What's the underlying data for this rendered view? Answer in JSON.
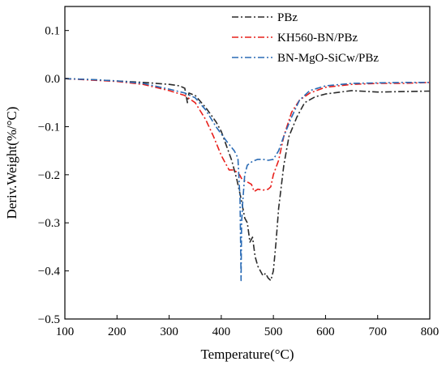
{
  "chart_data": {
    "type": "line",
    "title": "",
    "xlabel": "Temperature(°C)",
    "ylabel": "Deriv.Weight(%/°C)",
    "xlim": [
      100,
      800
    ],
    "ylim": [
      -0.5,
      0.15
    ],
    "xticks": [
      100,
      200,
      300,
      400,
      500,
      600,
      700,
      800
    ],
    "yticks": [
      -0.5,
      -0.4,
      -0.3,
      -0.2,
      -0.1,
      0.0,
      0.1
    ],
    "ytick_labels": [
      "−0.5",
      "−0.4",
      "−0.3",
      "−0.2",
      "−0.1",
      "0.0",
      "0.1"
    ],
    "grid": false,
    "legend_position": "top-right",
    "series": [
      {
        "name": "PBz",
        "color": "#2b2b2b",
        "dash": "dash-dot",
        "points": [
          [
            100,
            0.0
          ],
          [
            150,
            -0.002
          ],
          [
            200,
            -0.005
          ],
          [
            250,
            -0.008
          ],
          [
            300,
            -0.012
          ],
          [
            320,
            -0.015
          ],
          [
            330,
            -0.02
          ],
          [
            335,
            -0.05
          ],
          [
            338,
            -0.03
          ],
          [
            350,
            -0.035
          ],
          [
            370,
            -0.06
          ],
          [
            390,
            -0.09
          ],
          [
            400,
            -0.11
          ],
          [
            410,
            -0.14
          ],
          [
            420,
            -0.17
          ],
          [
            430,
            -0.21
          ],
          [
            438,
            -0.25
          ],
          [
            445,
            -0.29
          ],
          [
            450,
            -0.3
          ],
          [
            455,
            -0.34
          ],
          [
            460,
            -0.33
          ],
          [
            465,
            -0.37
          ],
          [
            470,
            -0.39
          ],
          [
            475,
            -0.4
          ],
          [
            480,
            -0.41
          ],
          [
            485,
            -0.405
          ],
          [
            490,
            -0.415
          ],
          [
            495,
            -0.42
          ],
          [
            500,
            -0.4
          ],
          [
            505,
            -0.34
          ],
          [
            510,
            -0.27
          ],
          [
            520,
            -0.18
          ],
          [
            530,
            -0.12
          ],
          [
            545,
            -0.08
          ],
          [
            560,
            -0.05
          ],
          [
            580,
            -0.038
          ],
          [
            600,
            -0.032
          ],
          [
            650,
            -0.025
          ],
          [
            700,
            -0.028
          ],
          [
            750,
            -0.027
          ],
          [
            800,
            -0.026
          ]
        ]
      },
      {
        "name": "KH560-BN/PBz",
        "color": "#e8201c",
        "dash": "dash-dot",
        "points": [
          [
            100,
            0.0
          ],
          [
            150,
            -0.003
          ],
          [
            200,
            -0.006
          ],
          [
            250,
            -0.012
          ],
          [
            300,
            -0.025
          ],
          [
            330,
            -0.035
          ],
          [
            350,
            -0.05
          ],
          [
            370,
            -0.085
          ],
          [
            385,
            -0.12
          ],
          [
            400,
            -0.16
          ],
          [
            415,
            -0.19
          ],
          [
            425,
            -0.19
          ],
          [
            435,
            -0.2
          ],
          [
            440,
            -0.21
          ],
          [
            450,
            -0.215
          ],
          [
            458,
            -0.22
          ],
          [
            463,
            -0.235
          ],
          [
            470,
            -0.23
          ],
          [
            480,
            -0.232
          ],
          [
            490,
            -0.23
          ],
          [
            495,
            -0.225
          ],
          [
            500,
            -0.2
          ],
          [
            510,
            -0.17
          ],
          [
            520,
            -0.12
          ],
          [
            535,
            -0.07
          ],
          [
            550,
            -0.045
          ],
          [
            570,
            -0.03
          ],
          [
            600,
            -0.018
          ],
          [
            650,
            -0.012
          ],
          [
            700,
            -0.01
          ],
          [
            750,
            -0.01
          ],
          [
            800,
            -0.008
          ]
        ]
      },
      {
        "name": "BN-MgO-SiCw/PBz",
        "color": "#2a6bb5",
        "dash": "dash-dot",
        "points": [
          [
            100,
            0.0
          ],
          [
            150,
            -0.002
          ],
          [
            200,
            -0.005
          ],
          [
            250,
            -0.01
          ],
          [
            300,
            -0.022
          ],
          [
            330,
            -0.03
          ],
          [
            350,
            -0.04
          ],
          [
            370,
            -0.065
          ],
          [
            390,
            -0.1
          ],
          [
            410,
            -0.13
          ],
          [
            425,
            -0.15
          ],
          [
            432,
            -0.165
          ],
          [
            436,
            -0.25
          ],
          [
            438,
            -0.42
          ],
          [
            439,
            -0.3
          ],
          [
            441,
            -0.26
          ],
          [
            445,
            -0.2
          ],
          [
            450,
            -0.18
          ],
          [
            460,
            -0.172
          ],
          [
            470,
            -0.168
          ],
          [
            480,
            -0.168
          ],
          [
            490,
            -0.17
          ],
          [
            500,
            -0.168
          ],
          [
            510,
            -0.15
          ],
          [
            520,
            -0.12
          ],
          [
            535,
            -0.08
          ],
          [
            550,
            -0.045
          ],
          [
            570,
            -0.025
          ],
          [
            600,
            -0.015
          ],
          [
            650,
            -0.01
          ],
          [
            700,
            -0.009
          ],
          [
            750,
            -0.008
          ],
          [
            800,
            -0.008
          ]
        ]
      }
    ]
  }
}
